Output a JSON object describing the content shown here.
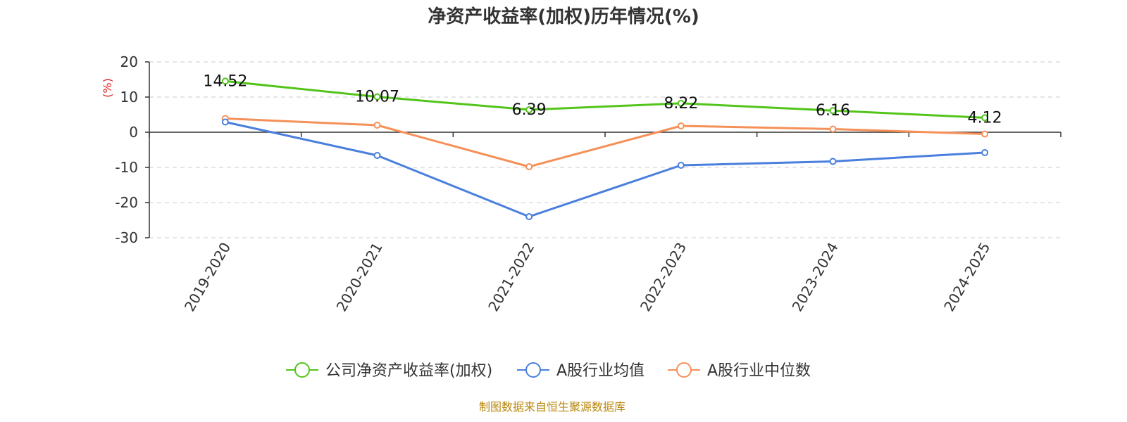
{
  "chart_data": {
    "type": "line",
    "title": "净资产收益率(加权)历年情况(%)",
    "ylabel": "(%)",
    "categories": [
      "2019-2020",
      "2020-2021",
      "2021-2022",
      "2022-2023",
      "2023-2024",
      "2024-2025"
    ],
    "ylim": [
      -30,
      20
    ],
    "yticks": [
      20,
      10,
      0,
      -10,
      -20,
      -30
    ],
    "grid": true,
    "legend_position": "bottom",
    "series": [
      {
        "name": "公司净资产收益率(加权)",
        "color": "#52c41a",
        "values": [
          14.52,
          10.07,
          6.39,
          8.22,
          6.16,
          4.12
        ],
        "labels": [
          "14.52",
          "10.07",
          "6.39",
          "8.22",
          "6.16",
          "4.12"
        ]
      },
      {
        "name": "A股行业均值",
        "color": "#4a7fdd",
        "values": [
          2.9,
          -6.6,
          -24.0,
          -9.4,
          -8.3,
          -5.8
        ]
      },
      {
        "name": "A股行业中位数",
        "color": "#f59058",
        "values": [
          3.9,
          2.0,
          -9.8,
          1.8,
          0.9,
          -0.5
        ]
      }
    ]
  },
  "source": "制图数据来自恒生聚源数据库"
}
